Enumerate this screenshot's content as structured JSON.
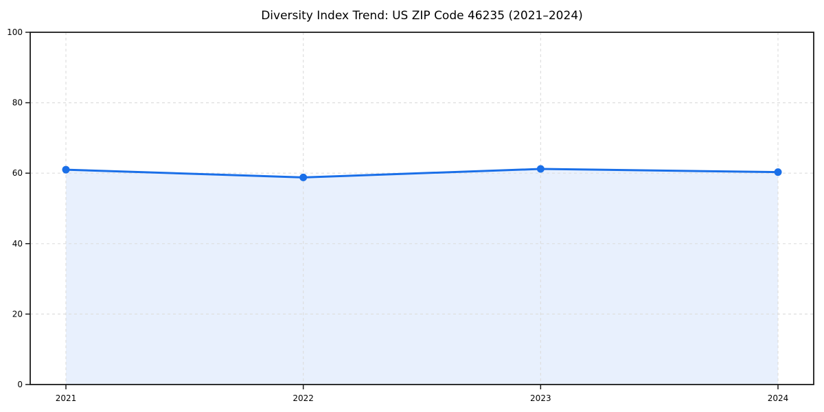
{
  "title": "Diversity Index Trend: US ZIP Code 46235 (2021–2024)",
  "chart_data": {
    "type": "area",
    "title": "Diversity Index Trend: US ZIP Code 46235 (2021–2024)",
    "x": [
      2021,
      2022,
      2023,
      2024
    ],
    "categories": [
      "2021",
      "2022",
      "2023",
      "2024"
    ],
    "series": [
      {
        "name": "Diversity Index",
        "values": [
          61.0,
          58.8,
          61.2,
          60.3
        ]
      }
    ],
    "xlabel": "",
    "ylabel": "",
    "ylim": [
      0,
      100
    ],
    "yticks": [
      0,
      20,
      40,
      60,
      80,
      100
    ],
    "grid": true,
    "grid_style": "dashed",
    "legend_position": "none",
    "colors": {
      "line": "#1a6fe8",
      "marker": "#1a6fe8",
      "fill": "rgba(26, 111, 232, 0.10)",
      "grid": "#dedede",
      "spine": "#1a1a1a",
      "text": "#000000",
      "background": "#ffffff"
    }
  }
}
